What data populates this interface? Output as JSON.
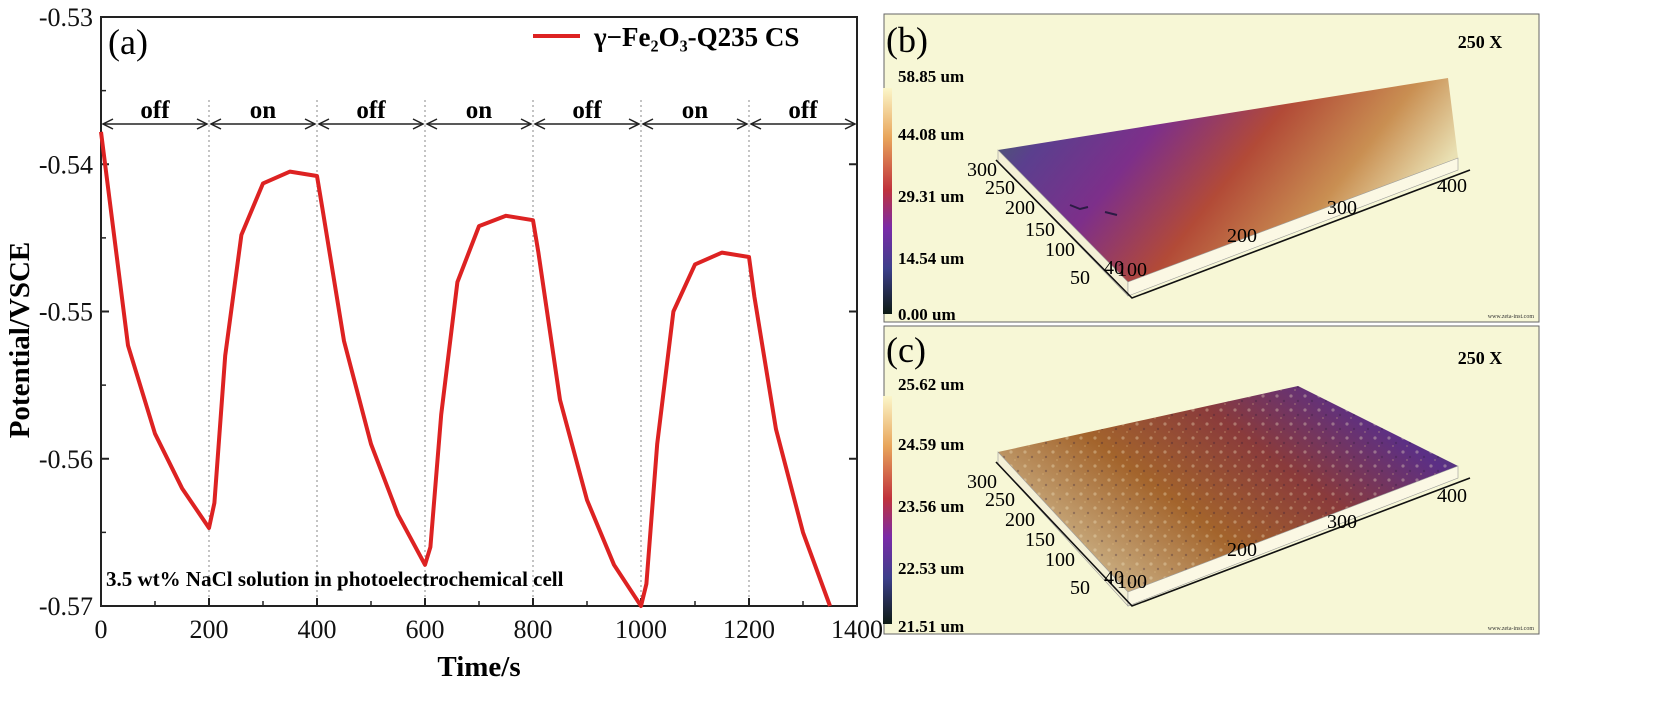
{
  "chart_data": {
    "type": "line",
    "panel_label": "(a)",
    "xlabel": "Time/s",
    "ylabel": "Potential/VSCE",
    "xlim": [
      0,
      1400
    ],
    "ylim": [
      -0.57,
      -0.53
    ],
    "x_ticks": [
      "0",
      "200",
      "400",
      "600",
      "800",
      "1000",
      "1200",
      "1400"
    ],
    "y_ticks": [
      "-0.53",
      "-0.54",
      "-0.55",
      "-0.56",
      "-0.57"
    ],
    "legend": {
      "name": "γ−Fe₂O₃-Q235 CS",
      "color": "#dd2222",
      "placement": "top-right"
    },
    "annotation": "3.5 wt% NaCl solution in photoelectrochemical cell",
    "switch_boundaries": [
      200,
      400,
      600,
      800,
      1000,
      1200
    ],
    "phases": [
      {
        "label": "off",
        "start": 0,
        "end": 200
      },
      {
        "label": "on",
        "start": 200,
        "end": 400
      },
      {
        "label": "off",
        "start": 400,
        "end": 600
      },
      {
        "label": "on",
        "start": 600,
        "end": 800
      },
      {
        "label": "off",
        "start": 800,
        "end": 1000
      },
      {
        "label": "on",
        "start": 1000,
        "end": 1200
      },
      {
        "label": "off",
        "start": 1200,
        "end": 1400
      }
    ],
    "series": [
      {
        "name": "γ−Fe₂O₃-Q235 CS",
        "color": "#dd2222",
        "x": [
          0,
          50,
          100,
          150,
          200,
          210,
          230,
          260,
          300,
          350,
          400,
          410,
          450,
          500,
          550,
          600,
          610,
          630,
          660,
          700,
          750,
          800,
          810,
          850,
          900,
          950,
          1000,
          1010,
          1030,
          1060,
          1100,
          1150,
          1200,
          1210,
          1250,
          1300,
          1350
        ],
        "y": [
          -0.5378,
          -0.5523,
          -0.5583,
          -0.562,
          -0.5647,
          -0.563,
          -0.553,
          -0.5448,
          -0.5413,
          -0.5405,
          -0.5408,
          -0.543,
          -0.552,
          -0.559,
          -0.5638,
          -0.5672,
          -0.566,
          -0.557,
          -0.548,
          -0.5442,
          -0.5435,
          -0.5438,
          -0.546,
          -0.556,
          -0.5628,
          -0.5672,
          -0.57,
          -0.5685,
          -0.559,
          -0.55,
          -0.5468,
          -0.546,
          -0.5463,
          -0.549,
          -0.558,
          -0.565,
          -0.57
        ]
      }
    ]
  },
  "panel_b": {
    "label": "(b)",
    "magnification": "250 X",
    "colorbar": [
      "58.85 um",
      "44.08 um",
      "29.31 um",
      "14.54 um",
      "0.00 um"
    ],
    "x_axis_ticks": [
      "100",
      "200",
      "300",
      "400"
    ],
    "y_axis_ticks": [
      "50",
      "100",
      "150",
      "200",
      "250",
      "300"
    ],
    "y_corner_tick": "40",
    "footer": "www.zeta-inst.com"
  },
  "panel_c": {
    "label": "(c)",
    "magnification": "250 X",
    "colorbar": [
      "25.62 um",
      "24.59 um",
      "23.56 um",
      "22.53 um",
      "21.51 um"
    ],
    "x_axis_ticks": [
      "100",
      "200",
      "300",
      "400"
    ],
    "y_axis_ticks": [
      "50",
      "100",
      "150",
      "200",
      "250",
      "300"
    ],
    "y_corner_tick": "40",
    "footer": "www.zeta-inst.com"
  }
}
